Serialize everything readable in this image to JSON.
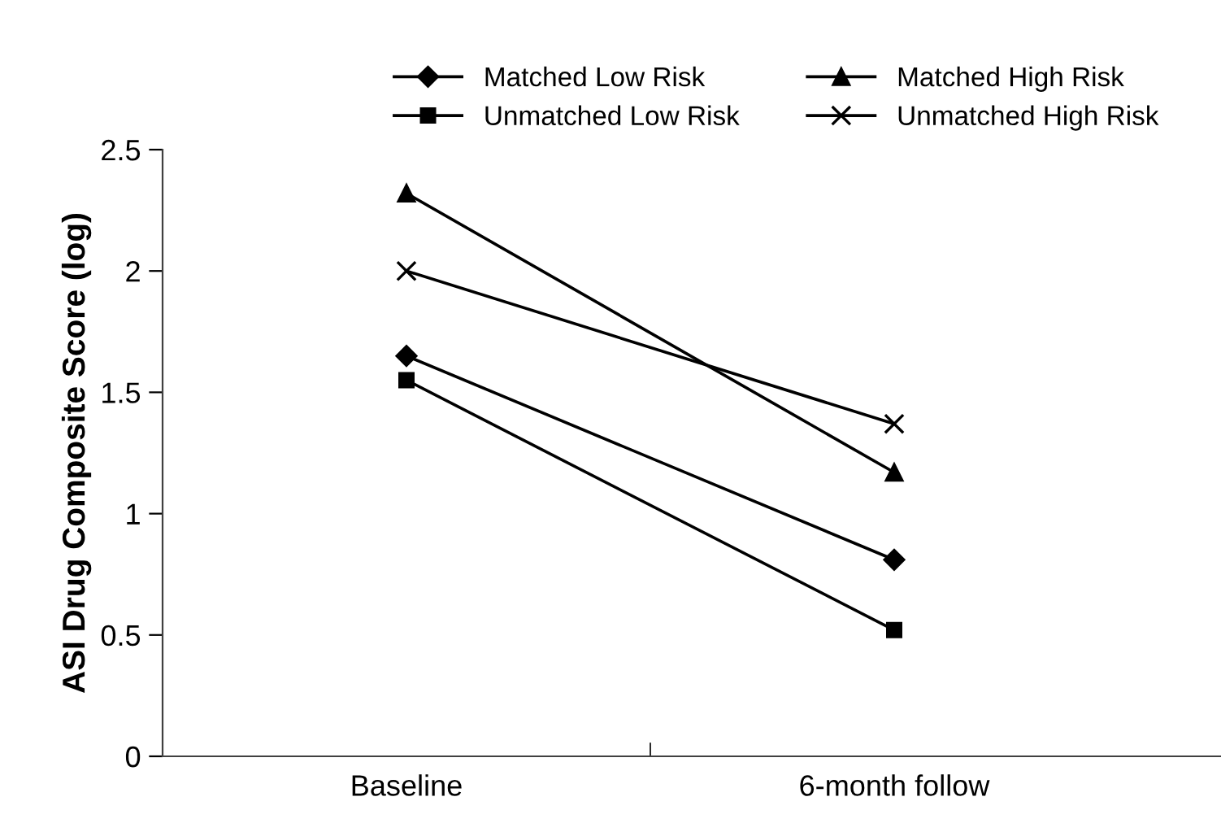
{
  "chart_data": {
    "type": "line",
    "ylabel": "ASI Drug Composite Score (log)",
    "categories": [
      "Baseline",
      "6-month follow"
    ],
    "series": [
      {
        "name": "Matched Low Risk",
        "color": "#000000",
        "marker": "diamond",
        "values": [
          1.65,
          0.81
        ]
      },
      {
        "name": "Unmatched Low Risk",
        "color": "#000000",
        "marker": "square",
        "values": [
          1.55,
          0.52
        ]
      },
      {
        "name": "Matched High Risk",
        "color": "#000000",
        "marker": "triangle",
        "values": [
          2.32,
          1.17
        ]
      },
      {
        "name": "Unmatched High Risk",
        "color": "#000000",
        "marker": "cross",
        "values": [
          2.0,
          1.37
        ]
      }
    ],
    "ylim": [
      0,
      2.5
    ],
    "yticks": [
      0,
      0.5,
      1,
      1.5,
      2,
      2.5
    ],
    "grid": false,
    "legend": "top",
    "line_style": "solid"
  }
}
